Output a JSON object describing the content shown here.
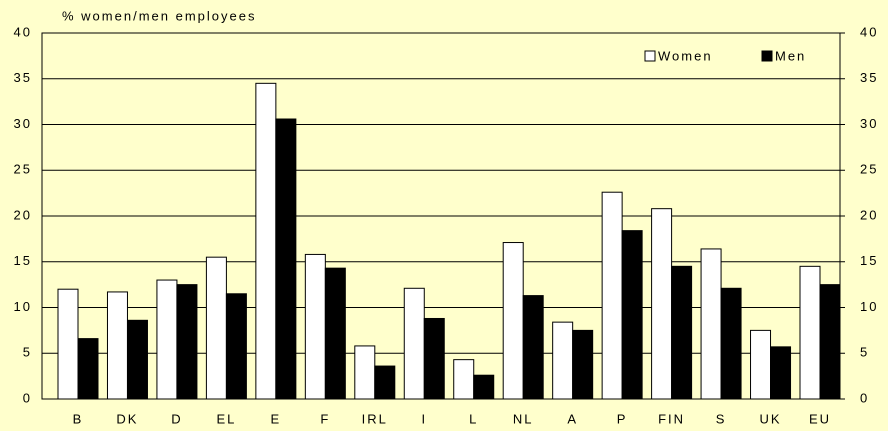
{
  "chart_data": {
    "type": "bar",
    "y_label": "% women/men employees",
    "categories": [
      "B",
      "DK",
      "D",
      "EL",
      "E",
      "F",
      "IRL",
      "I",
      "L",
      "NL",
      "A",
      "P",
      "FIN",
      "S",
      "UK",
      "EU"
    ],
    "series": [
      {
        "name": "Women",
        "color": "#ffffff",
        "values": [
          12,
          11.7,
          13,
          15.5,
          34.5,
          15.8,
          5.8,
          12.1,
          4.3,
          17.1,
          8.4,
          22.6,
          20.8,
          16.4,
          7.5,
          14.5
        ]
      },
      {
        "name": "Men",
        "color": "#000000",
        "values": [
          6.6,
          8.6,
          12.5,
          11.5,
          30.6,
          14.3,
          3.6,
          8.8,
          2.6,
          11.3,
          7.5,
          18.4,
          14.5,
          12.1,
          5.7,
          12.5
        ]
      }
    ],
    "ylim": [
      0,
      40
    ],
    "yticks": [
      0,
      5,
      10,
      15,
      20,
      25,
      30,
      35,
      40
    ],
    "y2lim": [
      0,
      40
    ],
    "y2ticks": [
      0,
      5,
      10,
      15,
      20,
      25,
      30,
      35,
      40
    ],
    "grid": true,
    "legend": "upper right"
  }
}
